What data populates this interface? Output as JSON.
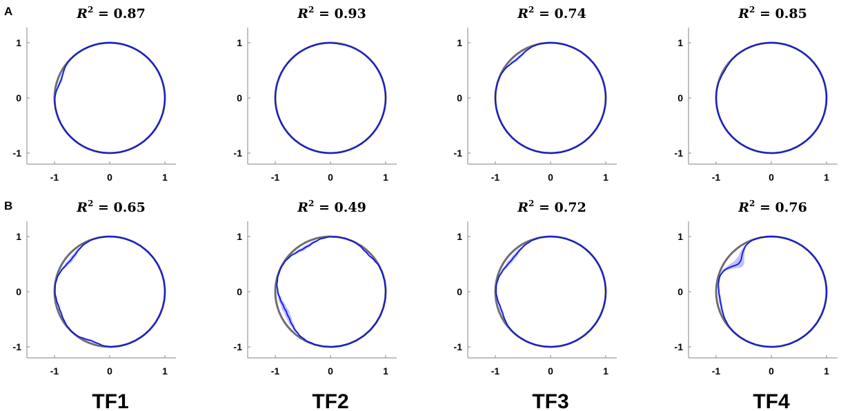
{
  "figure": {
    "row_labels": [
      "A",
      "B"
    ],
    "column_labels": [
      "TF1",
      "TF2",
      "TF3",
      "TF4"
    ],
    "axis_ticks": {
      "x": [
        "-1",
        "0",
        "1"
      ],
      "y": [
        "1",
        "0",
        "-1"
      ]
    },
    "colors": {
      "trace": "#0a14e6",
      "band": "#8c8cff",
      "reference_circle": "#6e6e6e",
      "axis": "#9a9a9a"
    }
  },
  "chart_data": [
    {
      "type": "line",
      "row": "A",
      "column": "TF1",
      "r2_label": "R",
      "r2_exp": "2",
      "r2_value": "= 0.87",
      "r2": 0.87,
      "xlim": [
        -1.5,
        1.2
      ],
      "ylim": [
        -1.2,
        1.2
      ],
      "reference": "unit circle",
      "deviations": [
        {
          "angle_deg": 160,
          "amp": 0.06,
          "width_deg": 22
        }
      ]
    },
    {
      "type": "line",
      "row": "A",
      "column": "TF2",
      "r2_label": "R",
      "r2_exp": "2",
      "r2_value": "= 0.93",
      "r2": 0.93,
      "xlim": [
        -1.5,
        1.2
      ],
      "ylim": [
        -1.2,
        1.2
      ],
      "reference": "unit circle",
      "deviations": [
        {
          "angle_deg": 80,
          "amp": 0.01,
          "width_deg": 12
        }
      ]
    },
    {
      "type": "line",
      "row": "A",
      "column": "TF3",
      "r2_label": "R",
      "r2_exp": "2",
      "r2_value": "= 0.74",
      "r2": 0.74,
      "xlim": [
        -1.5,
        1.2
      ],
      "ylim": [
        -1.2,
        1.2
      ],
      "reference": "unit circle",
      "deviations": [
        {
          "angle_deg": 130,
          "amp": 0.07,
          "width_deg": 26
        }
      ]
    },
    {
      "type": "line",
      "row": "A",
      "column": "TF4",
      "r2_label": "R",
      "r2_exp": "2",
      "r2_value": "= 0.85",
      "r2": 0.85,
      "xlim": [
        -1.5,
        1.2
      ],
      "ylim": [
        -1.2,
        1.2
      ],
      "reference": "unit circle",
      "deviations": [
        {
          "angle_deg": 150,
          "amp": 0.02,
          "width_deg": 20
        }
      ]
    },
    {
      "type": "line",
      "row": "B",
      "column": "TF1",
      "r2_label": "R",
      "r2_exp": "2",
      "r2_value": "= 0.65",
      "r2": 0.65,
      "xlim": [
        -1.5,
        1.2
      ],
      "ylim": [
        -1.2,
        1.2
      ],
      "reference": "unit circle",
      "deviations": [
        {
          "angle_deg": 140,
          "amp": 0.09,
          "width_deg": 30
        },
        {
          "angle_deg": 200,
          "amp": 0.04,
          "width_deg": 25
        },
        {
          "angle_deg": 250,
          "amp": 0.05,
          "width_deg": 20
        }
      ]
    },
    {
      "type": "line",
      "row": "B",
      "column": "TF2",
      "r2_label": "R",
      "r2_exp": "2",
      "r2_value": "= 0.49",
      "r2": 0.49,
      "xlim": [
        -1.5,
        1.2
      ],
      "ylim": [
        -1.2,
        1.2
      ],
      "reference": "unit circle",
      "deviations": [
        {
          "angle_deg": 120,
          "amp": 0.08,
          "width_deg": 30
        },
        {
          "angle_deg": 205,
          "amp": 0.12,
          "width_deg": 40
        },
        {
          "angle_deg": 45,
          "amp": 0.04,
          "width_deg": 20
        }
      ]
    },
    {
      "type": "line",
      "row": "B",
      "column": "TF3",
      "r2_label": "R",
      "r2_exp": "2",
      "r2_value": "= 0.72",
      "r2": 0.72,
      "xlim": [
        -1.5,
        1.2
      ],
      "ylim": [
        -1.2,
        1.2
      ],
      "reference": "unit circle",
      "deviations": [
        {
          "angle_deg": 140,
          "amp": 0.09,
          "width_deg": 35
        },
        {
          "angle_deg": 200,
          "amp": 0.05,
          "width_deg": 25
        }
      ]
    },
    {
      "type": "line",
      "row": "B",
      "column": "TF4",
      "r2_label": "R",
      "r2_exp": "2",
      "r2_value": "= 0.76",
      "r2": 0.76,
      "xlim": [
        -1.5,
        1.2
      ],
      "ylim": [
        -1.2,
        1.2
      ],
      "reference": "unit circle",
      "deviations": [
        {
          "angle_deg": 138,
          "amp": 0.22,
          "width_deg": 24
        },
        {
          "angle_deg": 190,
          "amp": 0.06,
          "width_deg": 35
        }
      ]
    }
  ]
}
